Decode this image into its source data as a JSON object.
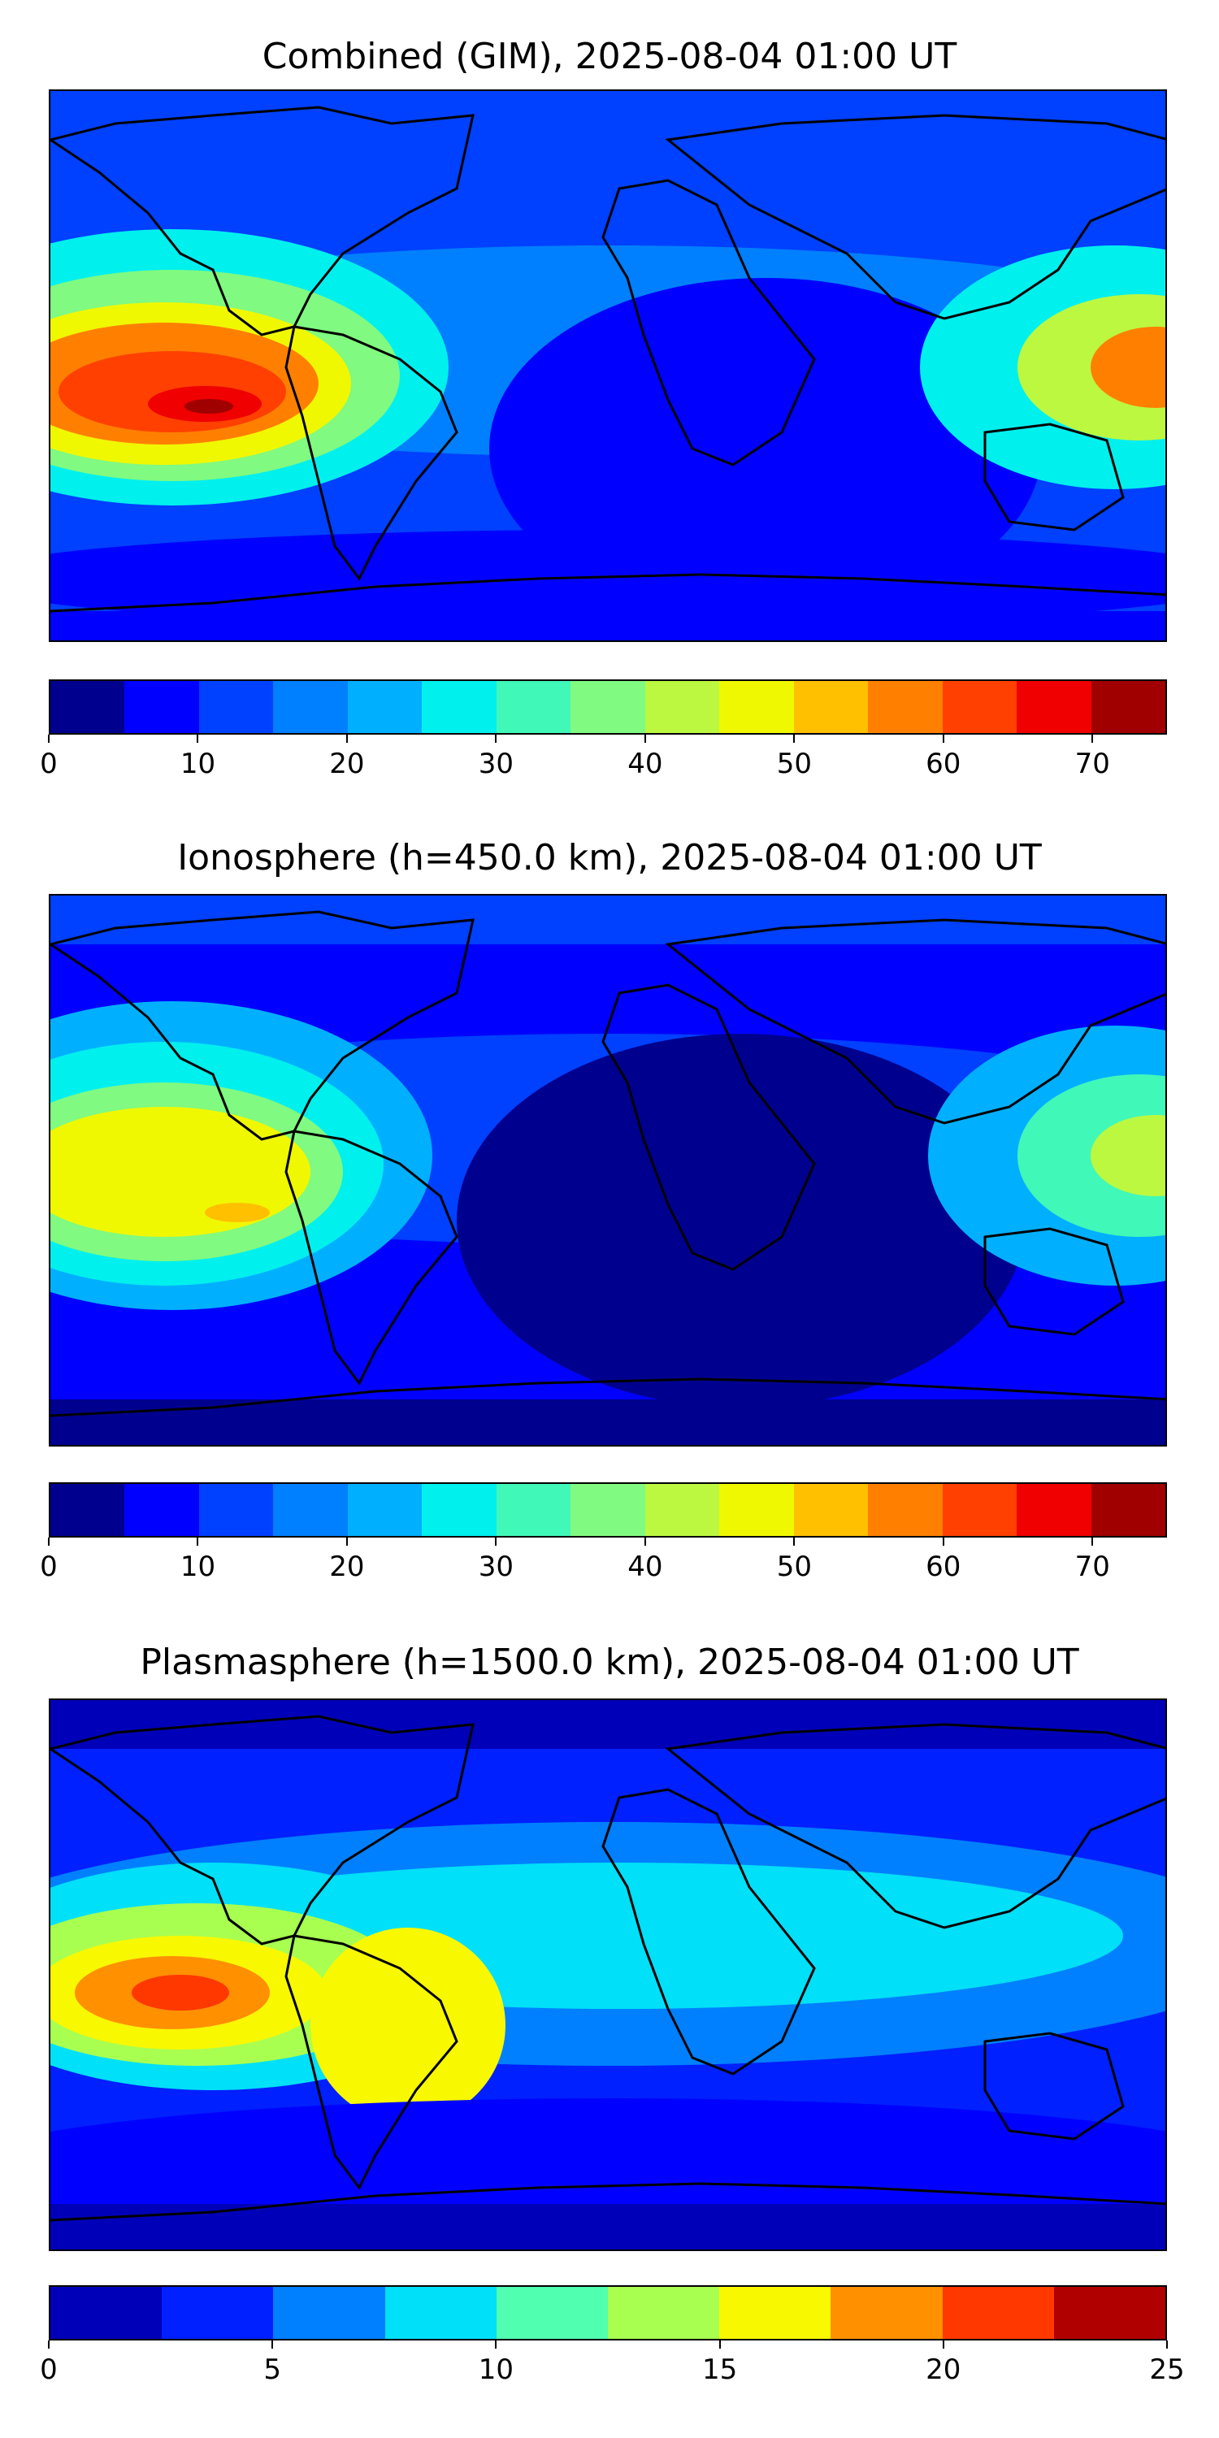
{
  "panels": [
    {
      "title": "Combined (GIM), 2025-08-04 01:00 UT",
      "scale_max": 75,
      "colorbar_colors": [
        "#00008f",
        "#0000ff",
        "#0040ff",
        "#0080ff",
        "#00b0ff",
        "#00f0ee",
        "#40f8b8",
        "#80fa80",
        "#bcf840",
        "#f0f800",
        "#ffc000",
        "#ff8000",
        "#ff4000",
        "#f00000",
        "#a00000"
      ],
      "tick_labels": [
        "0",
        "10",
        "20",
        "30",
        "40",
        "50",
        "60",
        "70"
      ],
      "tick_values": [
        0,
        10,
        20,
        30,
        40,
        50,
        60,
        70
      ],
      "map_background": "#0040ff",
      "coastline_color": "#000000"
    },
    {
      "title": "Ionosphere  (h=450.0 km), 2025-08-04 01:00 UT",
      "scale_max": 75,
      "colorbar_colors": [
        "#00008f",
        "#0000ff",
        "#0040ff",
        "#0080ff",
        "#00b0ff",
        "#00f0ee",
        "#40f8b8",
        "#80fa80",
        "#bcf840",
        "#f0f800",
        "#ffc000",
        "#ff8000",
        "#ff4000",
        "#f00000",
        "#a00000"
      ],
      "tick_labels": [
        "0",
        "10",
        "20",
        "30",
        "40",
        "50",
        "60",
        "70"
      ],
      "tick_values": [
        0,
        10,
        20,
        30,
        40,
        50,
        60,
        70
      ],
      "map_background": "#0000ff",
      "coastline_color": "#000000"
    },
    {
      "title": "Plasmasphere (h=1500.0 km), 2025-08-04 01:00 UT",
      "scale_max": 25,
      "colorbar_colors": [
        "#0000b8",
        "#0020ff",
        "#0080ff",
        "#00e0f8",
        "#50ffb0",
        "#a8ff50",
        "#f8f800",
        "#ff9000",
        "#ff3800",
        "#b00000"
      ],
      "tick_labels": [
        "0",
        "5",
        "10",
        "15",
        "20",
        "25"
      ],
      "tick_values": [
        0,
        5,
        10,
        15,
        20,
        25
      ],
      "map_background": "#0020ff",
      "coastline_color": "#000000"
    }
  ]
}
